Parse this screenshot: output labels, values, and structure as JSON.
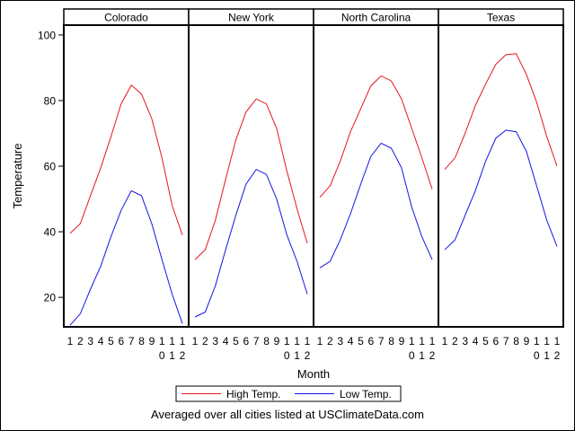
{
  "chart_data": {
    "type": "line",
    "ylabel": "Temperature",
    "xlabel": "Month",
    "footnote": "Averaged over all cities listed at USClimateData.com",
    "ylim": [
      11,
      103
    ],
    "yticks": [
      20,
      40,
      60,
      80,
      100
    ],
    "x": [
      1,
      2,
      3,
      4,
      5,
      6,
      7,
      8,
      9,
      10,
      11,
      12
    ],
    "xtick_labels": [
      "1",
      "2",
      "3",
      "4",
      "5",
      "6",
      "7",
      "8",
      "9",
      "1\n0",
      "1\n1",
      "1\n2"
    ],
    "legend": {
      "placement": "bottom"
    },
    "colors": {
      "high": "#e8141c",
      "low": "#1414e6"
    },
    "panels": [
      {
        "title": "Colorado",
        "series": [
          {
            "name": "High Temp.",
            "values": [
              39.5,
              42.5,
              51,
              59.5,
              69,
              79,
              84.7,
              82,
              74.5,
              62.5,
              48,
              39
            ]
          },
          {
            "name": "Low Temp.",
            "values": [
              11.5,
              15,
              22.5,
              29.5,
              38.5,
              46.5,
              52.5,
              51,
              42.5,
              31.5,
              21,
              12
            ]
          }
        ]
      },
      {
        "title": "New York",
        "series": [
          {
            "name": "High Temp.",
            "values": [
              31.5,
              34.5,
              43.5,
              56,
              68,
              76.5,
              80.5,
              79,
              71.5,
              58.5,
              47,
              36.5
            ]
          },
          {
            "name": "Low Temp.",
            "values": [
              14,
              15.5,
              23.5,
              34.5,
              45,
              54.5,
              59,
              57.5,
              50,
              39,
              31,
              21
            ]
          }
        ]
      },
      {
        "title": "North Carolina",
        "series": [
          {
            "name": "High Temp.",
            "values": [
              50.5,
              54,
              61.5,
              70.5,
              77.5,
              84.5,
              87.5,
              86,
              80.5,
              71.5,
              62.5,
              53
            ]
          },
          {
            "name": "Low Temp.",
            "values": [
              29,
              31,
              37.5,
              45.5,
              54.5,
              63,
              67,
              65.5,
              59.5,
              47.5,
              38.5,
              31.5
            ]
          }
        ]
      },
      {
        "title": "Texas",
        "series": [
          {
            "name": "High Temp.",
            "values": [
              59,
              62.5,
              70,
              78.5,
              85,
              91,
              94,
              94.3,
              88,
              79.5,
              69,
              60
            ]
          },
          {
            "name": "Low Temp.",
            "values": [
              34.5,
              37.5,
              45,
              52.5,
              61.5,
              68.5,
              71,
              70.5,
              64.5,
              54,
              43.5,
              35.5
            ]
          }
        ]
      }
    ]
  }
}
